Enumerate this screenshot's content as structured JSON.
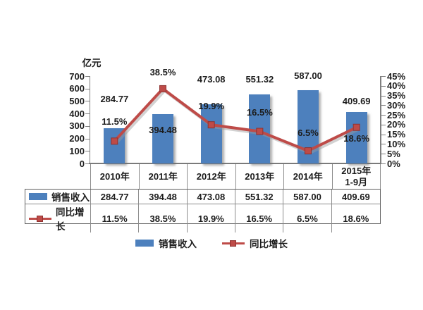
{
  "chart_data": {
    "type": "combo bar+line",
    "categories": [
      "2010年",
      "2011年",
      "2012年",
      "2013年",
      "2014年",
      "2015年\n1-9月"
    ],
    "series": [
      {
        "name": "销售收入",
        "type": "bar",
        "axis": "left",
        "color": "#4D80BD",
        "values": [
          284.77,
          394.48,
          473.08,
          551.32,
          587.0,
          409.69
        ],
        "display": [
          "284.77",
          "394.48",
          "473.08",
          "551.32",
          "587.00",
          "409.69"
        ]
      },
      {
        "name": "同比增长",
        "type": "line",
        "axis": "right",
        "color": "#BE4B48",
        "values": [
          11.5,
          38.5,
          19.9,
          16.5,
          6.5,
          18.6
        ],
        "display": [
          "11.5%",
          "38.5%",
          "19.9%",
          "16.5%",
          "6.5%",
          "18.6%"
        ]
      }
    ],
    "left_axis": {
      "title": "亿元",
      "min": 0,
      "max": 700,
      "step": 100,
      "ticks": [
        "700",
        "600",
        "500",
        "400",
        "300",
        "200",
        "100",
        "0"
      ]
    },
    "right_axis": {
      "min": 0,
      "max": 45,
      "step": 5,
      "ticks": [
        "45%",
        "40%",
        "35%",
        "30%",
        "25%",
        "20%",
        "15%",
        "10%",
        "5%",
        "0%"
      ]
    },
    "grid": false,
    "legend_position": "bottom",
    "layout_hints": {
      "value_label_y": [
        142,
        186,
        114,
        114,
        109,
        145
      ],
      "growth_label_y": [
        174,
        104,
        152,
        161,
        190,
        198
      ]
    }
  }
}
